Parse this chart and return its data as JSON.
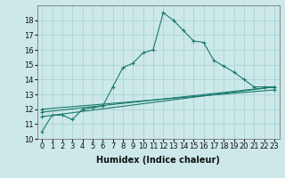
{
  "title": "",
  "xlabel": "Humidex (Indice chaleur)",
  "ylabel": "",
  "background_color": "#cce8e8",
  "grid_color": "#aad4d4",
  "line_color": "#1a7a6e",
  "xlim": [
    -0.5,
    23.5
  ],
  "ylim": [
    10,
    19
  ],
  "yticks": [
    10,
    11,
    12,
    13,
    14,
    15,
    16,
    17,
    18
  ],
  "xticks": [
    0,
    1,
    2,
    3,
    4,
    5,
    6,
    7,
    8,
    9,
    10,
    11,
    12,
    13,
    14,
    15,
    16,
    17,
    18,
    19,
    20,
    21,
    22,
    23
  ],
  "series1_x": [
    0,
    1,
    2,
    3,
    4,
    5,
    6,
    7,
    8,
    9,
    10,
    11,
    12,
    13,
    14,
    15,
    16,
    17,
    18,
    19,
    20,
    21,
    22,
    23
  ],
  "series1_y": [
    10.5,
    11.6,
    11.6,
    11.3,
    12.0,
    12.1,
    12.2,
    13.5,
    14.8,
    15.1,
    15.8,
    16.0,
    18.5,
    18.0,
    17.3,
    16.6,
    16.5,
    15.3,
    14.9,
    14.5,
    14.0,
    13.5,
    13.5,
    13.5
  ],
  "series2_x": [
    0,
    23
  ],
  "series2_y": [
    11.5,
    13.5
  ],
  "series3_x": [
    0,
    23
  ],
  "series3_y": [
    11.8,
    13.5
  ],
  "series4_x": [
    0,
    23
  ],
  "series4_y": [
    12.0,
    13.3
  ],
  "tick_fontsize": 6,
  "xlabel_fontsize": 7
}
